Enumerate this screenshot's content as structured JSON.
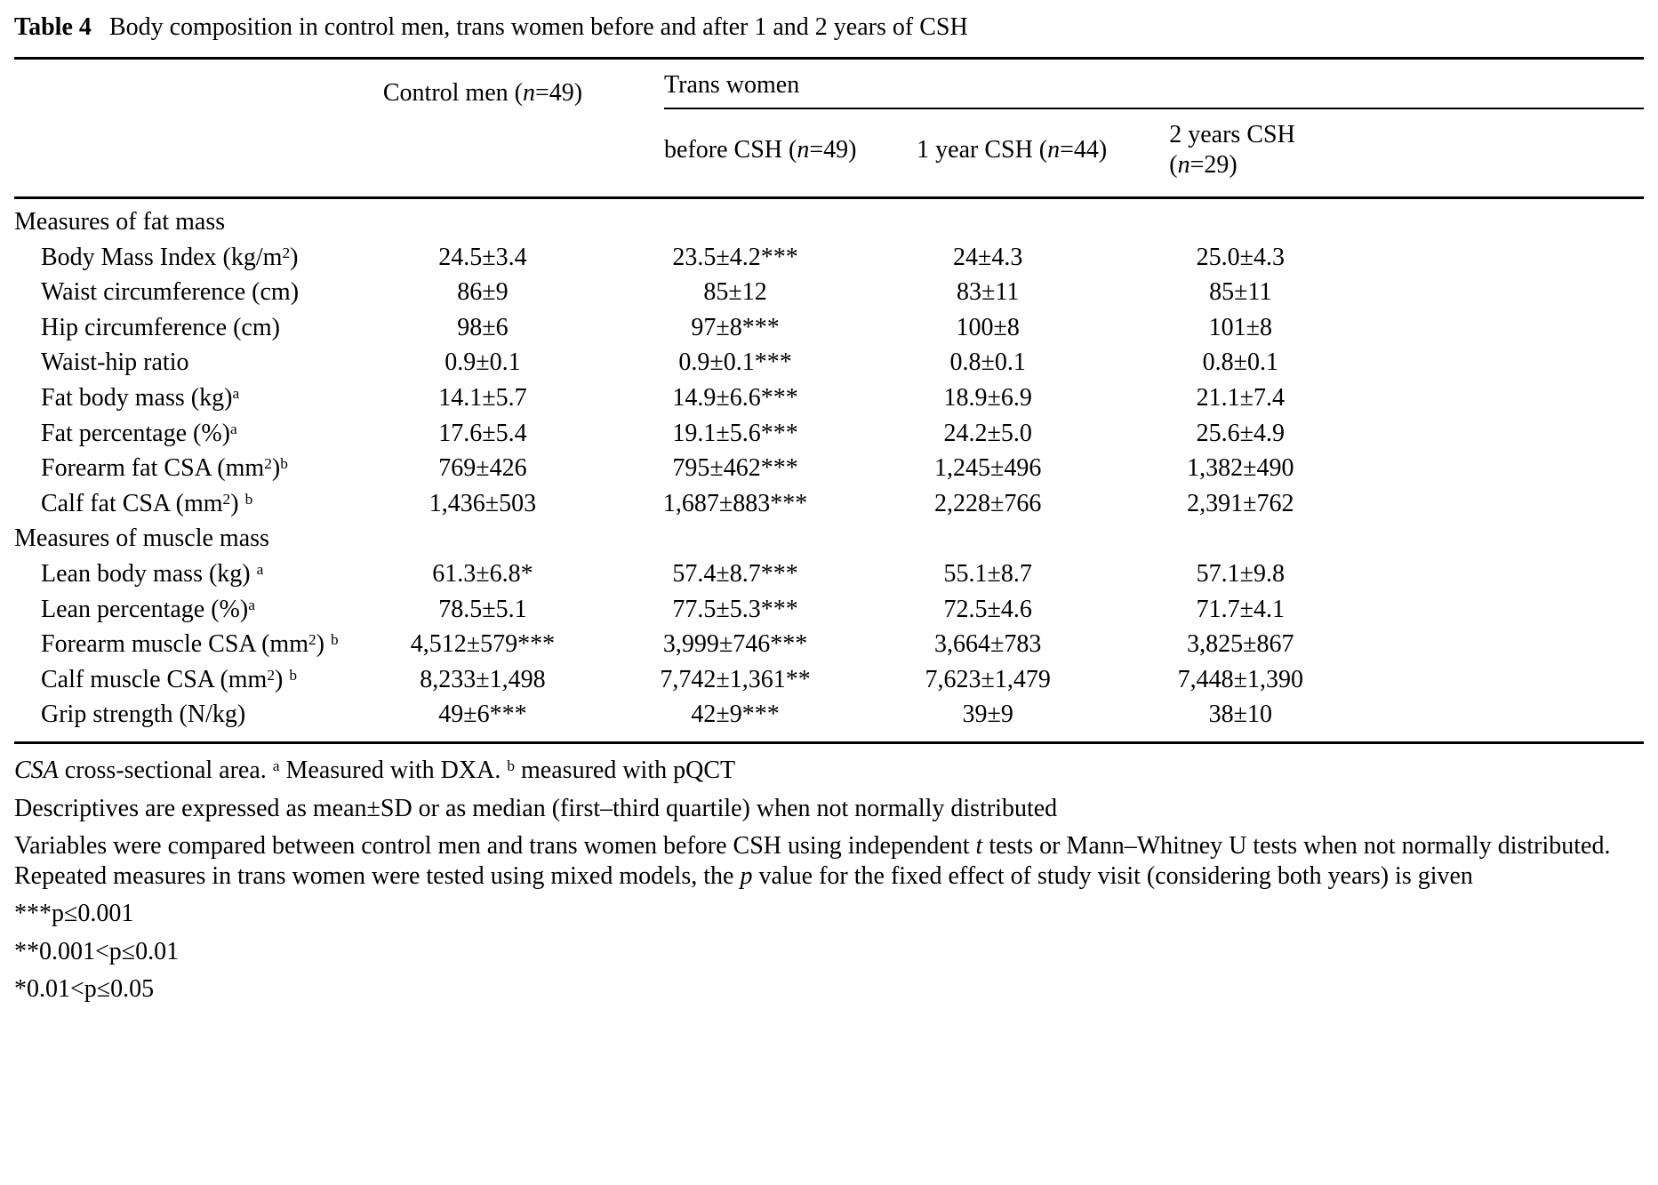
{
  "caption": {
    "label": "Table 4",
    "text": "Body composition in control men, trans women before and after 1 and 2 years of CSH"
  },
  "table": {
    "group_header": "Trans women",
    "control_header": "Control men (~n~=49)",
    "sub_headers": [
      "before CSH (~n~=49)",
      "1 year CSH (~n~=44)",
      "2 years CSH (~n~=29)"
    ],
    "sections": [
      {
        "header": "Measures of fat mass",
        "rows": [
          {
            "label": "Body Mass Index (kg/m^{2})",
            "values": [
              "24.5±3.4",
              "23.5±4.2***",
              "24±4.3",
              "25.0±4.3"
            ]
          },
          {
            "label": "Waist circumference (cm)",
            "values": [
              "86±9",
              "85±12",
              "83±11",
              "85±11"
            ]
          },
          {
            "label": "Hip circumference (cm)",
            "values": [
              "98±6",
              "97±8***",
              "100±8",
              "101±8"
            ]
          },
          {
            "label": "Waist-hip ratio",
            "values": [
              "0.9±0.1",
              "0.9±0.1***",
              "0.8±0.1",
              "0.8±0.1"
            ]
          },
          {
            "label": "Fat body mass (kg)^{a}",
            "values": [
              "14.1±5.7",
              "14.9±6.6***",
              "18.9±6.9",
              "21.1±7.4"
            ]
          },
          {
            "label": "Fat percentage (%)^{a}",
            "values": [
              "17.6±5.4",
              "19.1±5.6***",
              "24.2±5.0",
              "25.6±4.9"
            ]
          },
          {
            "label": "Forearm fat CSA (mm^{2})^{b}",
            "values": [
              "769±426",
              "795±462***",
              "1,245±496",
              "1,382±490"
            ]
          },
          {
            "label": "Calf fat CSA (mm^{2}) ^{b}",
            "values": [
              "1,436±503",
              "1,687±883***",
              "2,228±766",
              "2,391±762"
            ]
          }
        ]
      },
      {
        "header": "Measures of muscle mass",
        "rows": [
          {
            "label": "Lean body mass (kg) ^{a}",
            "values": [
              "61.3±6.8*",
              "57.4±8.7***",
              "55.1±8.7",
              "57.1±9.8"
            ]
          },
          {
            "label": "Lean percentage (%)^{a}",
            "values": [
              "78.5±5.1",
              "77.5±5.3***",
              "72.5±4.6",
              "71.7±4.1"
            ]
          },
          {
            "label": "Forearm muscle CSA (mm^{2}) ^{b}",
            "values": [
              "4,512±579***",
              "3,999±746***",
              "3,664±783",
              "3,825±867"
            ]
          },
          {
            "label": "Calf muscle CSA (mm^{2}) ^{b}",
            "values": [
              "8,233±1,498",
              "7,742±1,361**",
              "7,623±1,479",
              "7,448±1,390"
            ]
          },
          {
            "label": "Grip strength (N/kg)",
            "values": [
              "49±6***",
              "42±9***",
              "39±9",
              "38±10"
            ]
          }
        ]
      }
    ]
  },
  "footnotes": [
    "~CSA~ cross-sectional area. ^{a} Measured with DXA. ^{b} measured with pQCT",
    "Descriptives are expressed as mean±SD or as median (first–third quartile) when not normally distributed",
    "Variables were compared between control men and trans women before CSH using independent ~t~ tests or Mann–Whitney U tests when not normally distributed. Repeated measures in trans women were tested using mixed models, the ~p~ value for the fixed effect of study visit (considering both years) is given",
    "***p≤0.001",
    "**0.001<p≤0.01",
    "*0.01<p≤0.05"
  ]
}
